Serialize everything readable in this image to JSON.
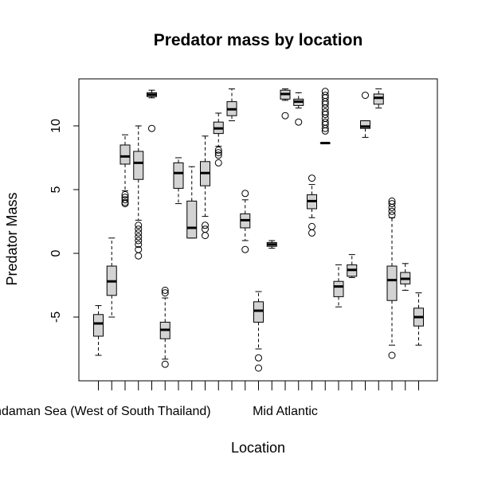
{
  "chart_data": {
    "type": "box",
    "title": "Predator mass by location",
    "xlabel": "Location",
    "ylabel": "Predator Mass",
    "ylim": [
      -10,
      14
    ],
    "yticks": [
      -5,
      0,
      5,
      10
    ],
    "x_tick_count": 25,
    "x_tick_labels": [
      {
        "index": 0,
        "label": "Andaman Sea (West of South Thailand)"
      },
      {
        "index": 14,
        "label": "Mid Atlantic"
      }
    ],
    "boxes": [
      {
        "lw": -8.0,
        "q1": -6.5,
        "med": -5.5,
        "q3": -4.8,
        "uw": -4.1,
        "out": []
      },
      {
        "lw": -5.0,
        "q1": -3.3,
        "med": -2.2,
        "q3": -1.0,
        "uw": 1.2,
        "out": []
      },
      {
        "lw": 4.9,
        "q1": 7.0,
        "med": 7.6,
        "q3": 8.5,
        "uw": 9.3,
        "out": [
          4.6,
          4.4,
          4.2,
          4.0,
          3.9
        ]
      },
      {
        "lw": 2.6,
        "q1": 5.8,
        "med": 7.1,
        "q3": 8.0,
        "uw": 10.0,
        "out": [
          2.2,
          1.9,
          1.6,
          1.3,
          1.0,
          0.7,
          0.3,
          -0.2
        ]
      },
      {
        "lw": 12.2,
        "q1": 12.3,
        "med": 12.45,
        "q3": 12.6,
        "uw": 12.8,
        "out": [
          9.8
        ]
      },
      {
        "lw": -8.3,
        "q1": -6.7,
        "med": -6.0,
        "q3": -5.4,
        "uw": -3.5,
        "out": [
          -2.9,
          -3.1,
          -8.7
        ]
      },
      {
        "lw": 3.9,
        "q1": 5.1,
        "med": 6.3,
        "q3": 7.1,
        "uw": 7.5,
        "out": []
      },
      {
        "lw": 1.2,
        "q1": 1.2,
        "med": 2.0,
        "q3": 4.1,
        "uw": 6.8,
        "out": []
      },
      {
        "lw": 2.9,
        "q1": 5.3,
        "med": 6.3,
        "q3": 7.2,
        "uw": 9.2,
        "out": [
          2.2,
          1.9,
          1.4
        ]
      },
      {
        "lw": 8.4,
        "q1": 9.4,
        "med": 9.8,
        "q3": 10.3,
        "uw": 11.0,
        "out": [
          8.1,
          7.9,
          7.7,
          7.1
        ]
      },
      {
        "lw": 10.4,
        "q1": 10.8,
        "med": 11.3,
        "q3": 11.9,
        "uw": 12.9,
        "out": []
      },
      {
        "lw": 1.0,
        "q1": 2.0,
        "med": 2.6,
        "q3": 3.1,
        "uw": 4.2,
        "out": [
          4.7,
          0.3
        ]
      },
      {
        "lw": -7.5,
        "q1": -5.4,
        "med": -4.5,
        "q3": -3.8,
        "uw": -3.0,
        "out": [
          -8.2,
          -9.0
        ]
      },
      {
        "lw": 0.4,
        "q1": 0.55,
        "med": 0.7,
        "q3": 0.85,
        "uw": 1.0,
        "out": []
      },
      {
        "lw": 12.0,
        "q1": 12.1,
        "med": 12.5,
        "q3": 12.8,
        "uw": 12.9,
        "out": [
          10.8
        ]
      },
      {
        "lw": 11.4,
        "q1": 11.6,
        "med": 11.9,
        "q3": 12.1,
        "uw": 12.6,
        "out": [
          10.3
        ]
      },
      {
        "lw": 2.8,
        "q1": 3.5,
        "med": 4.1,
        "q3": 4.6,
        "uw": 5.4,
        "out": [
          5.9,
          2.1,
          1.6
        ]
      },
      {
        "lw": 8.65,
        "q1": 8.65,
        "med": 8.65,
        "q3": 8.65,
        "uw": 8.65,
        "out": [
          9.6,
          9.8,
          10.1,
          10.3,
          10.6,
          10.9,
          11.1,
          11.4,
          11.7,
          11.9,
          12.2,
          12.4,
          12.7
        ]
      },
      {
        "lw": -4.2,
        "q1": -3.4,
        "med": -2.6,
        "q3": -2.2,
        "uw": -0.9,
        "out": []
      },
      {
        "lw": -1.9,
        "q1": -1.8,
        "med": -1.3,
        "q3": -0.9,
        "uw": -0.1,
        "out": []
      },
      {
        "lw": 9.1,
        "q1": 9.8,
        "med": 9.95,
        "q3": 10.4,
        "uw": 10.4,
        "out": [
          12.4
        ]
      },
      {
        "lw": 11.4,
        "q1": 11.7,
        "med": 12.2,
        "q3": 12.5,
        "uw": 12.9,
        "out": []
      },
      {
        "lw": -7.2,
        "q1": -3.7,
        "med": -2.1,
        "q3": -1.0,
        "uw": 2.8,
        "out": [
          3.0,
          3.3,
          3.6,
          3.9,
          4.1,
          -8.0
        ]
      },
      {
        "lw": -2.9,
        "q1": -2.4,
        "med": -2.0,
        "q3": -1.5,
        "uw": -0.8,
        "out": []
      },
      {
        "lw": -7.2,
        "q1": -5.7,
        "med": -5.0,
        "q3": -4.3,
        "uw": -3.1,
        "out": []
      }
    ]
  }
}
